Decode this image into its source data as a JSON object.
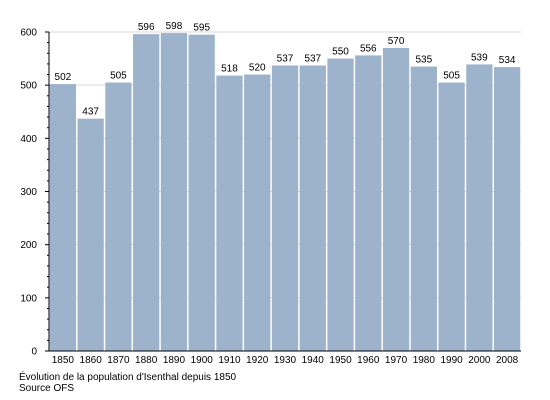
{
  "chart_data": {
    "type": "bar",
    "categories": [
      "1850",
      "1860",
      "1870",
      "1880",
      "1890",
      "1900",
      "1910",
      "1920",
      "1930",
      "1940",
      "1950",
      "1960",
      "1970",
      "1980",
      "1990",
      "2000",
      "2008"
    ],
    "values": [
      502,
      437,
      505,
      596,
      598,
      595,
      518,
      520,
      537,
      537,
      550,
      556,
      570,
      535,
      505,
      539,
      534
    ],
    "data_labels": [
      "502",
      "437",
      "505",
      "596",
      "598",
      "595",
      "518",
      "520",
      "537",
      "537",
      "550",
      "556",
      "570",
      "535",
      "505",
      "539",
      "534"
    ],
    "y_ticks": [
      0,
      100,
      200,
      300,
      400,
      500,
      600
    ],
    "ylim": [
      0,
      600
    ],
    "grid": true,
    "title": "",
    "xlabel": "",
    "ylabel": ""
  },
  "caption": {
    "line1": "Évolution de la population d'Isenthal depuis 1850",
    "line2": "Source OFS"
  },
  "colors": {
    "bar": "#9db3cb",
    "grid": "#d9d9d9",
    "axis": "#000000"
  }
}
